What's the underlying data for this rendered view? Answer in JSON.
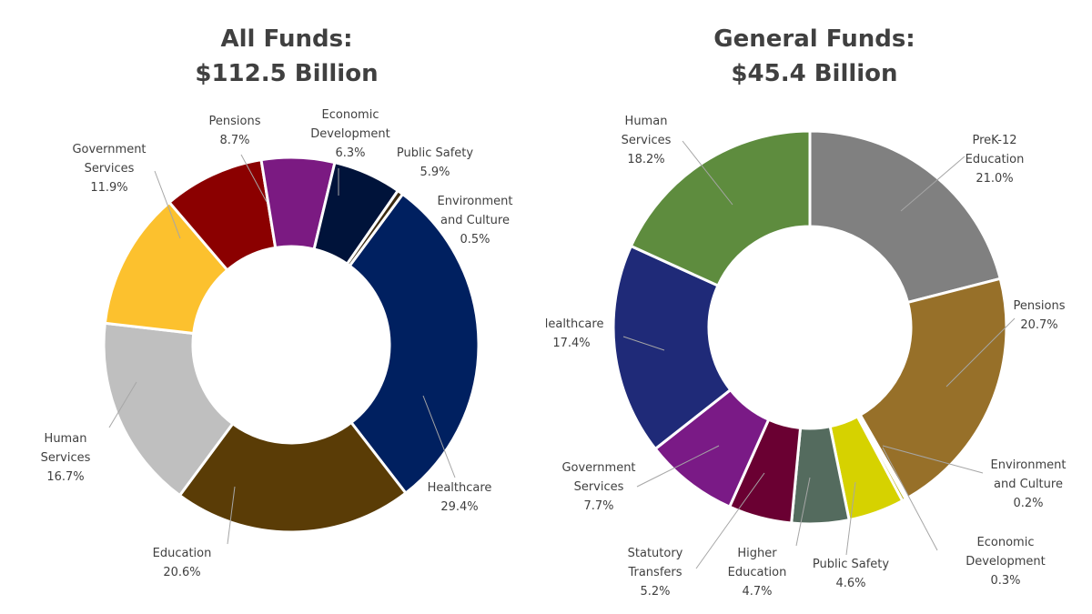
{
  "chart_data": [
    {
      "type": "donut",
      "title_line1": "All Funds:",
      "title_line2": "$112.5 Billion",
      "slices": [
        {
          "label": [
            "Healthcare"
          ],
          "value": 29.4,
          "value_label": "29.4%",
          "color": "#002060"
        },
        {
          "label": [
            "Education"
          ],
          "value": 20.6,
          "value_label": "20.6%",
          "color": "#5a3c06"
        },
        {
          "label": [
            "Human",
            "Services"
          ],
          "value": 16.7,
          "value_label": "16.7%",
          "color": "#bfbfbf"
        },
        {
          "label": [
            "Government",
            "Services"
          ],
          "value": 11.9,
          "value_label": "11.9%",
          "color": "#fcc12e"
        },
        {
          "label": [
            "Pensions"
          ],
          "value": 8.7,
          "value_label": "8.7%",
          "color": "#8b0000"
        },
        {
          "label": [
            "Economic",
            "Development"
          ],
          "value": 6.3,
          "value_label": "6.3%",
          "color": "#7b1a82"
        },
        {
          "label": [
            "Public Safety"
          ],
          "value": 5.9,
          "value_label": "5.9%",
          "color": "#00133a"
        },
        {
          "label": [
            "Environment",
            "and Culture"
          ],
          "value": 0.5,
          "value_label": "0.5%",
          "color": "#3b2a10"
        }
      ]
    },
    {
      "type": "donut",
      "title_line1": "General Funds:",
      "title_line2": "$45.4 Billion",
      "slices": [
        {
          "label": [
            "PreK-12",
            "Education"
          ],
          "value": 21.0,
          "value_label": "21.0%",
          "color": "#808080"
        },
        {
          "label": [
            "Pensions"
          ],
          "value": 20.7,
          "value_label": "20.7%",
          "color": "#977029"
        },
        {
          "label": [
            "Environment",
            "and Culture"
          ],
          "value": 0.2,
          "value_label": "0.2%",
          "color": "#8a6a2a"
        },
        {
          "label": [
            "Economic",
            "Development"
          ],
          "value": 0.3,
          "value_label": "0.3%",
          "color": "#b8b020"
        },
        {
          "label": [
            "Public Safety"
          ],
          "value": 4.6,
          "value_label": "4.6%",
          "color": "#d6d200"
        },
        {
          "label": [
            "Higher",
            "Education"
          ],
          "value": 4.7,
          "value_label": "4.7%",
          "color": "#546b5e"
        },
        {
          "label": [
            "Statutory",
            "Transfers"
          ],
          "value": 5.2,
          "value_label": "5.2%",
          "color": "#6a0032"
        },
        {
          "label": [
            "Government",
            "Services"
          ],
          "value": 7.7,
          "value_label": "7.7%",
          "color": "#7a1a86"
        },
        {
          "label": [
            "Healthcare"
          ],
          "value": 17.4,
          "value_label": "17.4%",
          "color": "#1f2a78"
        },
        {
          "label": [
            "Human",
            "Services"
          ],
          "value": 18.2,
          "value_label": "18.2%",
          "color": "#5e8c3e"
        }
      ]
    }
  ]
}
